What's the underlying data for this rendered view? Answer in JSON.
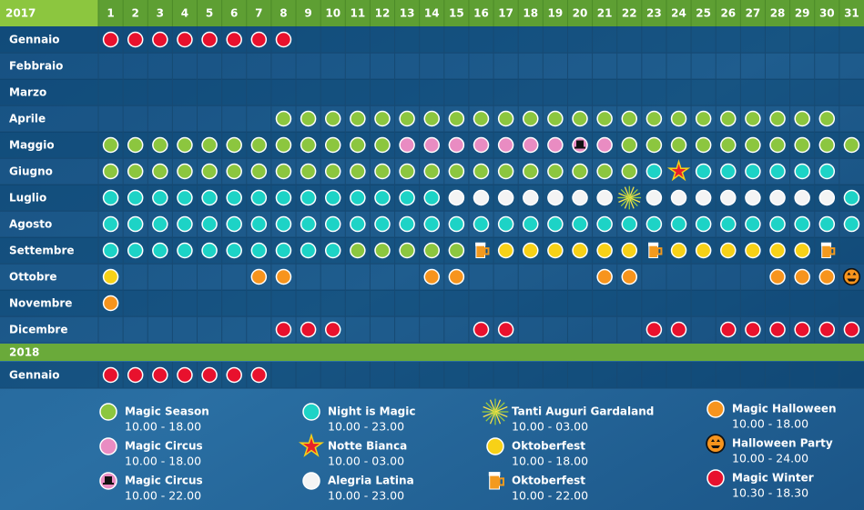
{
  "calendar": {
    "days": [
      1,
      2,
      3,
      4,
      5,
      6,
      7,
      8,
      9,
      10,
      11,
      12,
      13,
      14,
      15,
      16,
      17,
      18,
      19,
      20,
      21,
      22,
      23,
      24,
      25,
      26,
      27,
      28,
      29,
      30,
      31
    ],
    "years": [
      {
        "year": "2017",
        "months": [
          {
            "name": "Gennaio",
            "days": [
              11,
              11,
              11,
              11,
              11,
              11,
              11,
              11,
              null,
              null,
              null,
              null,
              null,
              null,
              null,
              null,
              null,
              null,
              null,
              null,
              null,
              null,
              null,
              null,
              null,
              null,
              null,
              null,
              null,
              null,
              null
            ]
          },
          {
            "name": "Febbraio",
            "days": [
              null,
              null,
              null,
              null,
              null,
              null,
              null,
              null,
              null,
              null,
              null,
              null,
              null,
              null,
              null,
              null,
              null,
              null,
              null,
              null,
              null,
              null,
              null,
              null,
              null,
              null,
              null,
              null,
              null,
              null,
              null
            ]
          },
          {
            "name": "Marzo",
            "days": [
              null,
              null,
              null,
              null,
              null,
              null,
              null,
              null,
              null,
              null,
              null,
              null,
              null,
              null,
              null,
              null,
              null,
              null,
              null,
              null,
              null,
              null,
              null,
              null,
              null,
              null,
              null,
              null,
              null,
              null,
              null
            ]
          },
          {
            "name": "Aprile",
            "days": [
              null,
              null,
              null,
              null,
              null,
              null,
              null,
              0,
              0,
              0,
              0,
              0,
              0,
              0,
              0,
              0,
              0,
              0,
              0,
              0,
              0,
              0,
              0,
              0,
              0,
              0,
              0,
              0,
              0,
              0,
              null
            ]
          },
          {
            "name": "Maggio",
            "days": [
              0,
              0,
              0,
              0,
              0,
              0,
              0,
              0,
              0,
              0,
              0,
              0,
              1,
              1,
              1,
              1,
              1,
              1,
              1,
              2,
              1,
              0,
              0,
              0,
              0,
              0,
              0,
              0,
              0,
              0,
              0
            ]
          },
          {
            "name": "Giugno",
            "days": [
              0,
              0,
              0,
              0,
              0,
              0,
              0,
              0,
              0,
              0,
              0,
              0,
              0,
              0,
              0,
              0,
              0,
              0,
              0,
              0,
              0,
              0,
              3,
              4,
              3,
              3,
              3,
              3,
              3,
              3,
              null
            ]
          },
          {
            "name": "Luglio",
            "days": [
              3,
              3,
              3,
              3,
              3,
              3,
              3,
              3,
              3,
              3,
              3,
              3,
              3,
              3,
              5,
              5,
              5,
              5,
              5,
              5,
              5,
              6,
              5,
              5,
              5,
              5,
              5,
              5,
              5,
              5,
              3
            ]
          },
          {
            "name": "Agosto",
            "days": [
              3,
              3,
              3,
              3,
              3,
              3,
              3,
              3,
              3,
              3,
              3,
              3,
              3,
              3,
              3,
              3,
              3,
              3,
              3,
              3,
              3,
              3,
              3,
              3,
              3,
              3,
              3,
              3,
              3,
              3,
              3
            ]
          },
          {
            "name": "Settembre",
            "days": [
              3,
              3,
              3,
              3,
              3,
              3,
              3,
              3,
              3,
              3,
              0,
              0,
              0,
              0,
              0,
              8,
              7,
              7,
              7,
              7,
              7,
              7,
              8,
              7,
              7,
              7,
              7,
              7,
              7,
              8,
              null
            ]
          },
          {
            "name": "Ottobre",
            "days": [
              7,
              null,
              null,
              null,
              null,
              null,
              9,
              9,
              null,
              null,
              null,
              null,
              null,
              9,
              9,
              null,
              null,
              null,
              null,
              null,
              9,
              9,
              null,
              null,
              null,
              null,
              null,
              9,
              9,
              9,
              10
            ]
          },
          {
            "name": "Novembre",
            "days": [
              9,
              null,
              null,
              null,
              null,
              null,
              null,
              null,
              null,
              null,
              null,
              null,
              null,
              null,
              null,
              null,
              null,
              null,
              null,
              null,
              null,
              null,
              null,
              null,
              null,
              null,
              null,
              null,
              null,
              null,
              null
            ]
          },
          {
            "name": "Dicembre",
            "days": [
              null,
              null,
              null,
              null,
              null,
              null,
              null,
              11,
              11,
              11,
              null,
              null,
              null,
              null,
              null,
              11,
              11,
              null,
              null,
              null,
              null,
              null,
              11,
              11,
              null,
              11,
              11,
              11,
              11,
              11,
              11
            ]
          }
        ]
      },
      {
        "year": "2018",
        "months": [
          {
            "name": "Gennaio",
            "days": [
              11,
              11,
              11,
              11,
              11,
              11,
              11,
              null,
              null,
              null,
              null,
              null,
              null,
              null,
              null,
              null,
              null,
              null,
              null,
              null,
              null,
              null,
              null,
              null,
              null,
              null,
              null,
              null,
              null,
              null,
              null
            ]
          }
        ]
      }
    ],
    "legend": [
      {
        "name": "Magic Season",
        "hours": "10.00 - 18.00",
        "icon": "dot",
        "color": "#8cc63f"
      },
      {
        "name": "Magic Circus",
        "hours": "10.00 - 18.00",
        "icon": "dot",
        "color": "#e98cc2"
      },
      {
        "name": "Magic Circus",
        "hours": "10.00 - 22.00",
        "icon": "hat",
        "color": "#e98cc2"
      },
      {
        "name": "Night is Magic",
        "hours": "10.00 - 23.00",
        "icon": "dot",
        "color": "#1dd3c6"
      },
      {
        "name": "Notte Bianca",
        "hours": "10.00 - 03.00",
        "icon": "star",
        "color": "#e8202a"
      },
      {
        "name": "Alegria Latina",
        "hours": "10.00 - 23.00",
        "icon": "dot",
        "color": "#f4f4f4"
      },
      {
        "name": "Tanti Auguri Gardaland",
        "hours": "10.00 - 03.00",
        "icon": "fireworks",
        "color": "#9ccc3c"
      },
      {
        "name": "Oktoberfest",
        "hours": "10.00 - 18.00",
        "icon": "dot",
        "color": "#f7d117"
      },
      {
        "name": "Oktoberfest",
        "hours": "10.00 - 22.00",
        "icon": "mug",
        "color": "#f39a1e"
      },
      {
        "name": "Magic Halloween",
        "hours": "10.00 - 18.00",
        "icon": "dot",
        "color": "#f7941d"
      },
      {
        "name": "Halloween Party",
        "hours": "10.00 - 24.00",
        "icon": "pumpkin",
        "color": "#f7941d"
      },
      {
        "name": "Magic Winter",
        "hours": "10.30 - 18.30",
        "icon": "dot",
        "color": "#e8112d"
      }
    ]
  }
}
